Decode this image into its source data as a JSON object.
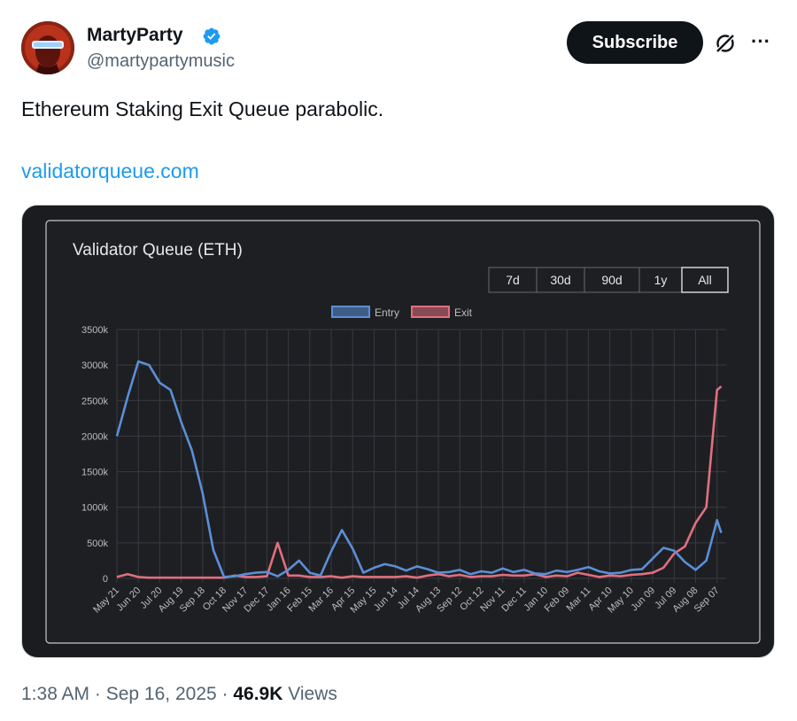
{
  "author": {
    "display_name": "MartyParty",
    "handle": "@martypartymusic",
    "verified": true
  },
  "actions": {
    "subscribe_label": "Subscribe",
    "grok_icon": "grok-icon",
    "more_icon": "more-icon"
  },
  "tweet": {
    "text": "Ethereum Staking Exit Queue parabolic.",
    "link": "validatorqueue.com"
  },
  "meta": {
    "time": "1:38 AM",
    "date": "Sep 16, 2025",
    "views_count": "46.9K",
    "views_label": "Views"
  },
  "colors": {
    "link": "#1d9bf0",
    "entry": "#5b8fd6",
    "exit": "#e0707f",
    "chart_bg": "#1b1c1f"
  },
  "chart_data": {
    "type": "line",
    "title": "Validator Queue (ETH)",
    "range_buttons": [
      "7d",
      "30d",
      "90d",
      "1y",
      "All"
    ],
    "selected_range": "All",
    "legend_position": "top-center",
    "grid": true,
    "y_ticks": [
      "3500k",
      "3000k",
      "2500k",
      "2000k",
      "1500k",
      "1000k",
      "500k",
      "0"
    ],
    "ylim": [
      0,
      3500
    ],
    "x_ticks": [
      "May 21",
      "Jun 20",
      "Jul 20",
      "Aug 19",
      "Sep 18",
      "Oct 18",
      "Nov 17",
      "Dec 17",
      "Jan 16",
      "Feb 15",
      "Mar 16",
      "Apr 15",
      "May 15",
      "Jun 14",
      "Jul 14",
      "Aug 13",
      "Sep 12",
      "Oct 12",
      "Nov 11",
      "Dec 11",
      "Jan 10",
      "Feb 09",
      "Mar 11",
      "Apr 10",
      "May 10",
      "Jun 09",
      "Jul 09",
      "Aug 08",
      "Sep 07"
    ],
    "x": [
      0,
      0.5,
      1,
      1.5,
      2,
      2.5,
      3,
      3.5,
      4,
      4.5,
      5,
      5.5,
      6,
      6.5,
      7,
      7.5,
      8,
      8.5,
      9,
      9.5,
      10,
      10.5,
      11,
      11.5,
      12,
      12.5,
      13,
      13.5,
      14,
      14.5,
      15,
      15.5,
      16,
      16.5,
      17,
      17.5,
      18,
      18.5,
      19,
      19.5,
      20,
      20.5,
      21,
      21.5,
      22,
      22.5,
      23,
      23.5,
      24,
      24.5,
      25,
      25.5,
      26,
      26.5,
      27,
      27.5,
      28,
      28.2
    ],
    "series": [
      {
        "name": "Entry",
        "color": "#5b8fd6",
        "values": [
          2000,
          2550,
          3050,
          3000,
          2750,
          2650,
          2200,
          1800,
          1200,
          400,
          20,
          30,
          60,
          80,
          90,
          30,
          120,
          250,
          80,
          40,
          380,
          680,
          420,
          80,
          150,
          200,
          170,
          110,
          170,
          130,
          80,
          90,
          120,
          60,
          100,
          80,
          140,
          90,
          120,
          70,
          60,
          110,
          90,
          120,
          160,
          100,
          70,
          80,
          120,
          130,
          280,
          430,
          390,
          230,
          120,
          250,
          820,
          640
        ]
      },
      {
        "name": "Exit",
        "color": "#e0707f",
        "values": [
          20,
          60,
          20,
          10,
          10,
          10,
          10,
          10,
          10,
          10,
          10,
          40,
          20,
          20,
          30,
          500,
          40,
          40,
          20,
          20,
          30,
          10,
          30,
          20,
          20,
          20,
          20,
          30,
          10,
          40,
          60,
          30,
          50,
          20,
          30,
          30,
          50,
          40,
          40,
          60,
          20,
          40,
          30,
          80,
          50,
          20,
          40,
          30,
          50,
          60,
          80,
          150,
          350,
          450,
          780,
          1000,
          2650,
          2700
        ]
      }
    ]
  }
}
